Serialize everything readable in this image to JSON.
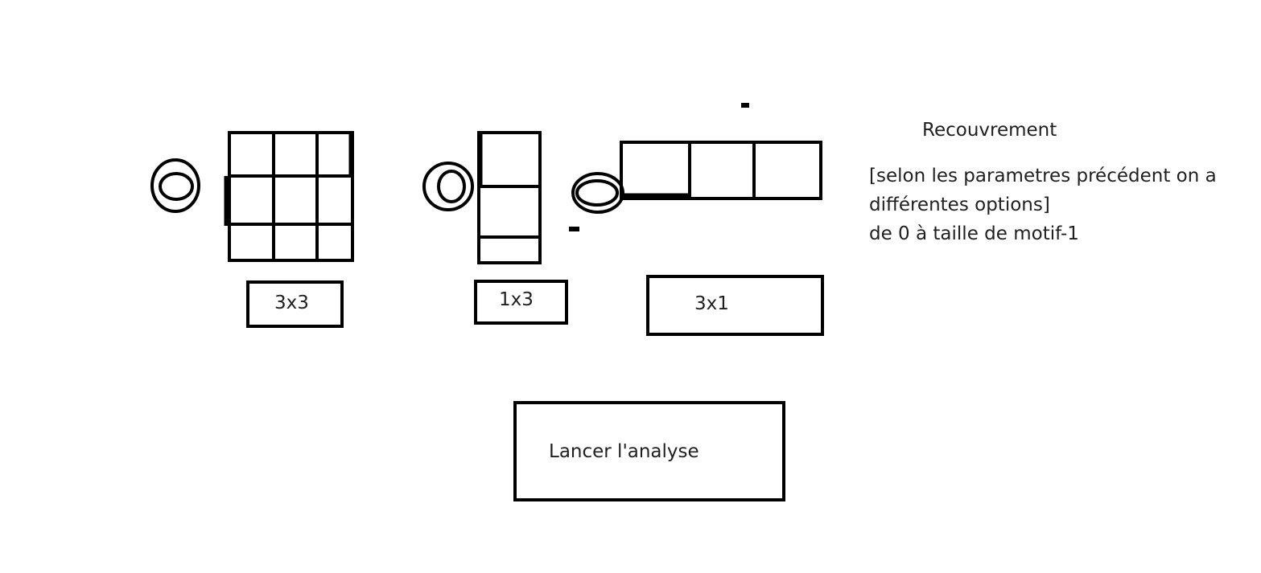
{
  "patterns": [
    {
      "id": "3x3",
      "label": "3x3",
      "cols": 3,
      "rows": 3,
      "selected": false
    },
    {
      "id": "1x3",
      "label": "1x3",
      "cols": 1,
      "rows": 3,
      "selected": false
    },
    {
      "id": "3x1",
      "label": "3x1",
      "cols": 3,
      "rows": 1,
      "selected": false
    }
  ],
  "overlap": {
    "title": "Recouvrement",
    "line1": "[selon les parametres précédent on a",
    "line2": "différentes options]",
    "line3": "de 0 à taille de motif-1"
  },
  "actions": {
    "run_label": "Lancer l'analyse"
  },
  "colors": {
    "stroke": "#000000",
    "background": "#ffffff",
    "text": "#1f1f1f"
  }
}
